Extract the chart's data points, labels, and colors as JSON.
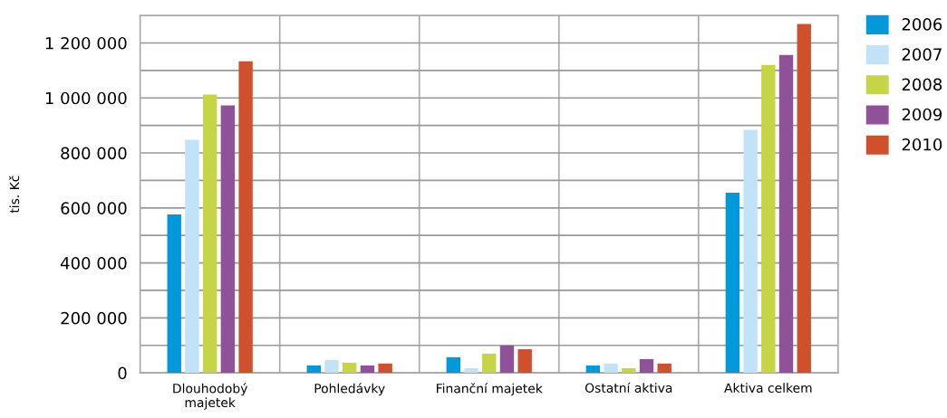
{
  "chart_data": {
    "type": "bar",
    "ylabel": "tis. Kč",
    "categories": [
      "Dlouhodobý\nmajetek",
      "Pohledávky",
      "Finanční majetek",
      "Ostatní aktiva",
      "Aktiva celkem"
    ],
    "series": [
      {
        "name": "2006",
        "color": "#009ada",
        "values": [
          576000,
          27000,
          57000,
          27000,
          655000
        ]
      },
      {
        "name": "2007",
        "color": "#c2e3f7",
        "values": [
          848000,
          47000,
          17000,
          34000,
          884000
        ]
      },
      {
        "name": "2008",
        "color": "#c5d545",
        "values": [
          1012000,
          37000,
          70000,
          17000,
          1120000
        ]
      },
      {
        "name": "2009",
        "color": "#8f5299",
        "values": [
          973000,
          27000,
          99000,
          50000,
          1156000
        ]
      },
      {
        "name": "2010",
        "color": "#d1502c",
        "values": [
          1133000,
          34000,
          86000,
          34000,
          1269000
        ]
      }
    ],
    "ylim": [
      0,
      1300000
    ],
    "yticks": [
      {
        "value": 0,
        "label": "0"
      },
      {
        "value": 100000,
        "label": null
      },
      {
        "value": 200000,
        "label": "200 000"
      },
      {
        "value": 300000,
        "label": null
      },
      {
        "value": 400000,
        "label": "400 000"
      },
      {
        "value": 500000,
        "label": null
      },
      {
        "value": 600000,
        "label": "600 000"
      },
      {
        "value": 700000,
        "label": null
      },
      {
        "value": 800000,
        "label": "800 000"
      },
      {
        "value": 900000,
        "label": null
      },
      {
        "value": 1000000,
        "label": "1 000 000"
      },
      {
        "value": 1100000,
        "label": null
      },
      {
        "value": 1200000,
        "label": "1 200 000"
      },
      {
        "value": 1300000,
        "label": null
      }
    ],
    "grid": true,
    "legend": "top right"
  }
}
